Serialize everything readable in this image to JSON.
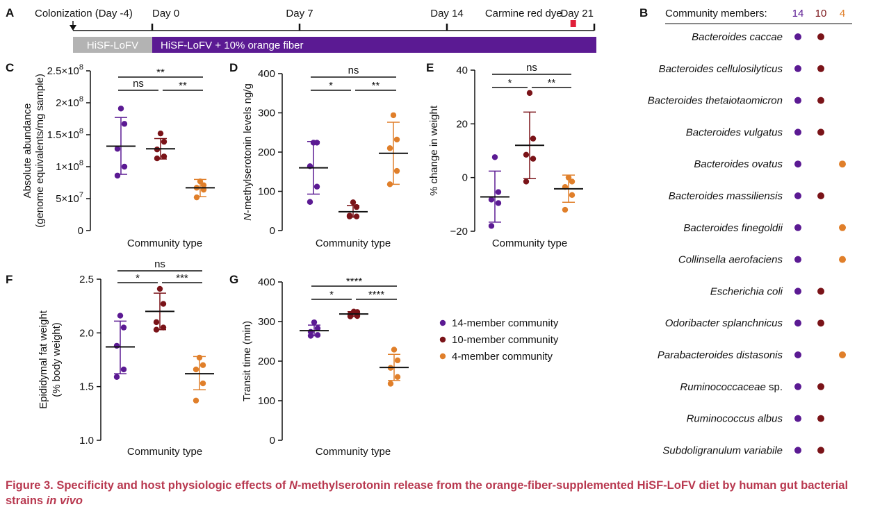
{
  "colors": {
    "c14": "#5b1a93",
    "c10": "#7a1318",
    "c4": "#e07f2a",
    "timeline_gray": "#b3b3b3",
    "timeline_purple": "#5b1a93",
    "dye_marker": "#e0203a",
    "caption": "#b8384f"
  },
  "panel_a": {
    "letter": "A",
    "colonization_label": "Colonization (Day -4)",
    "days": [
      {
        "label": "Day 0",
        "day": 0
      },
      {
        "label": "Day 7",
        "day": 7
      },
      {
        "label": "Day 14",
        "day": 14
      },
      {
        "label": "Day 21",
        "day": 21
      }
    ],
    "dye_label": "Carmine red dye",
    "dye_day": 20,
    "diet_1": "HiSF-LoFV",
    "diet_2": "HiSF-LoFV + 10% orange fiber"
  },
  "panel_b": {
    "letter": "B",
    "header": "Community members:",
    "communities": [
      "14",
      "10",
      "4"
    ],
    "members": [
      {
        "name": "Bacteroides caccae",
        "in": [
          true,
          true,
          false
        ]
      },
      {
        "name": "Bacteroides cellulosilyticus",
        "in": [
          true,
          true,
          false
        ]
      },
      {
        "name": "Bacteroides thetaiotaomicron",
        "in": [
          true,
          true,
          false
        ]
      },
      {
        "name": "Bacteroides vulgatus",
        "in": [
          true,
          true,
          false
        ]
      },
      {
        "name": "Bacteroides ovatus",
        "in": [
          true,
          false,
          true
        ]
      },
      {
        "name": "Bacteroides massiliensis",
        "in": [
          true,
          true,
          false
        ]
      },
      {
        "name": "Bacteroides finegoldii",
        "in": [
          true,
          false,
          true
        ]
      },
      {
        "name": "Collinsella aerofaciens",
        "in": [
          true,
          false,
          true
        ]
      },
      {
        "name": "Escherichia coli",
        "in": [
          true,
          true,
          false
        ]
      },
      {
        "name": "Odoribacter splanchnicus",
        "in": [
          true,
          true,
          false
        ]
      },
      {
        "name": "Parabacteroides distasonis",
        "in": [
          true,
          false,
          true
        ]
      },
      {
        "name": "Ruminococcaceae",
        "suffix": " sp.",
        "in": [
          true,
          true,
          false
        ]
      },
      {
        "name": "Ruminococcus albus",
        "in": [
          true,
          true,
          false
        ]
      },
      {
        "name": "Subdoligranulum variabile",
        "in": [
          true,
          true,
          false
        ]
      }
    ]
  },
  "legend": [
    {
      "label": "14-member community",
      "color_key": "c14"
    },
    {
      "label": "10-member community",
      "color_key": "c10"
    },
    {
      "label": "4-member community",
      "color_key": "c4"
    }
  ],
  "chart_data": [
    {
      "panel": "C",
      "type": "scatter",
      "ylabel_lines": [
        "Absolute abundance",
        "(genome equivalents/mg sample)"
      ],
      "xlabel": "Community type",
      "ylim": [
        0,
        250000000
      ],
      "yticks": [
        {
          "v": 0,
          "label": "0"
        },
        {
          "v": 50000000,
          "label": "5×10",
          "exp": "7"
        },
        {
          "v": 100000000,
          "label": "1×10",
          "exp": "8"
        },
        {
          "v": 150000000,
          "label": "1.5×10",
          "exp": "8"
        },
        {
          "v": 200000000,
          "label": "2×10",
          "exp": "8"
        },
        {
          "v": 250000000,
          "label": "2.5×10",
          "exp": "8"
        }
      ],
      "groups": [
        {
          "color_key": "c14",
          "points": [
            191000000,
            167000000,
            128000000,
            100000000,
            86000000
          ],
          "mean": 132000000,
          "sd_low": 88000000,
          "sd_high": 177000000
        },
        {
          "color_key": "c10",
          "points": [
            152000000,
            139000000,
            127000000,
            116000000,
            113000000
          ],
          "mean": 128000000,
          "sd_low": 112000000,
          "sd_high": 144000000
        },
        {
          "color_key": "c4",
          "points": [
            77000000,
            71000000,
            67000000,
            64000000,
            52000000
          ],
          "mean": 67000000,
          "sd_low": 53000000,
          "sd_high": 80000000
        }
      ],
      "sig": [
        {
          "from": 0,
          "to": 2,
          "level": 2,
          "label": "**"
        },
        {
          "from": 0,
          "to": 1,
          "level": 1,
          "label": "ns"
        },
        {
          "from": 1,
          "to": 2,
          "level": 1,
          "label": "**"
        }
      ]
    },
    {
      "panel": "D",
      "type": "scatter",
      "ylabel_lines": [
        "N-methylserotonin levels ng/g"
      ],
      "xlabel": "Community type",
      "ylim": [
        0,
        400
      ],
      "yticks": [
        {
          "v": 0,
          "label": "0"
        },
        {
          "v": 100,
          "label": "100"
        },
        {
          "v": 200,
          "label": "200"
        },
        {
          "v": 300,
          "label": "300"
        },
        {
          "v": 400,
          "label": "400"
        }
      ],
      "groups": [
        {
          "color_key": "c14",
          "points": [
            224,
            224,
            164,
            112,
            73
          ],
          "mean": 160,
          "sd_low": 93,
          "sd_high": 227
        },
        {
          "color_key": "c10",
          "points": [
            72,
            60,
            38,
            36,
            36
          ],
          "mean": 48,
          "sd_low": 34,
          "sd_high": 64
        },
        {
          "color_key": "c4",
          "points": [
            294,
            232,
            210,
            152,
            118
          ],
          "mean": 197,
          "sd_low": 118,
          "sd_high": 276
        }
      ],
      "sig": [
        {
          "from": 0,
          "to": 2,
          "level": 2,
          "label": "ns"
        },
        {
          "from": 0,
          "to": 1,
          "level": 1,
          "label": "*"
        },
        {
          "from": 1,
          "to": 2,
          "level": 1,
          "label": "**"
        }
      ]
    },
    {
      "panel": "E",
      "type": "scatter",
      "ylabel_lines": [
        "% change in weight"
      ],
      "xlabel": "Community type",
      "ylim": [
        -20,
        40
      ],
      "yticks": [
        {
          "v": -20,
          "label": "−20"
        },
        {
          "v": 0,
          "label": "0"
        },
        {
          "v": 20,
          "label": "20"
        },
        {
          "v": 40,
          "label": "40"
        }
      ],
      "groups": [
        {
          "color_key": "c14",
          "points": [
            7.6,
            -5.4,
            -8.2,
            -9.5,
            -18
          ],
          "mean": -7.2,
          "sd_low": -16.6,
          "sd_high": 2.4
        },
        {
          "color_key": "c10",
          "points": [
            31.5,
            14.5,
            8.5,
            7,
            -1.5
          ],
          "mean": 12,
          "sd_low": -0.4,
          "sd_high": 24.4
        },
        {
          "color_key": "c4",
          "points": [
            0,
            -1.5,
            -3.5,
            -6.5,
            -12
          ],
          "mean": -4.2,
          "sd_low": -9.2,
          "sd_high": 0.9
        }
      ],
      "sig": [
        {
          "from": 0,
          "to": 2,
          "level": 2,
          "label": "ns"
        },
        {
          "from": 0,
          "to": 1,
          "level": 1,
          "label": "*"
        },
        {
          "from": 1,
          "to": 2,
          "level": 1,
          "label": "**"
        }
      ]
    },
    {
      "panel": "F",
      "type": "scatter",
      "ylabel_lines": [
        "Epididymal fat weight",
        "(% body weight)"
      ],
      "xlabel": "Community type",
      "ylim": [
        1.0,
        2.5
      ],
      "yticks": [
        {
          "v": 1.0,
          "label": "1.0"
        },
        {
          "v": 1.5,
          "label": "1.5"
        },
        {
          "v": 2.0,
          "label": "2.0"
        },
        {
          "v": 2.5,
          "label": "2.5"
        }
      ],
      "groups": [
        {
          "color_key": "c14",
          "points": [
            2.16,
            2.05,
            1.88,
            1.66,
            1.59
          ],
          "mean": 1.87,
          "sd_low": 1.62,
          "sd_high": 2.11
        },
        {
          "color_key": "c10",
          "points": [
            2.41,
            2.27,
            2.1,
            2.05,
            2.03
          ],
          "mean": 2.2,
          "sd_low": 2.03,
          "sd_high": 2.37
        },
        {
          "color_key": "c4",
          "points": [
            1.77,
            1.7,
            1.66,
            1.53,
            1.37
          ],
          "mean": 1.62,
          "sd_low": 1.47,
          "sd_high": 1.78
        }
      ],
      "sig": [
        {
          "from": 0,
          "to": 2,
          "level": 2,
          "label": "ns"
        },
        {
          "from": 0,
          "to": 1,
          "level": 1,
          "label": "*"
        },
        {
          "from": 1,
          "to": 2,
          "level": 1,
          "label": "***"
        }
      ]
    },
    {
      "panel": "G",
      "type": "scatter",
      "ylabel_lines": [
        "Transit time (min)"
      ],
      "xlabel": "Community type",
      "ylim": [
        0,
        400
      ],
      "yticks": [
        {
          "v": 0,
          "label": "0"
        },
        {
          "v": 100,
          "label": "100"
        },
        {
          "v": 200,
          "label": "200"
        },
        {
          "v": 300,
          "label": "300"
        },
        {
          "v": 400,
          "label": "400"
        }
      ],
      "groups": [
        {
          "color_key": "c14",
          "points": [
            298,
            283,
            274,
            266,
            264
          ],
          "mean": 277,
          "sd_low": 264,
          "sd_high": 291
        },
        {
          "color_key": "c10",
          "points": [
            325,
            324,
            318,
            314,
            313
          ],
          "mean": 319,
          "sd_low": 313,
          "sd_high": 325
        },
        {
          "color_key": "c4",
          "points": [
            229,
            202,
            183,
            160,
            143
          ],
          "mean": 184,
          "sd_low": 151,
          "sd_high": 217
        }
      ],
      "sig": [
        {
          "from": 0,
          "to": 2,
          "level": 2,
          "label": "****"
        },
        {
          "from": 0,
          "to": 1,
          "level": 1,
          "label": "*"
        },
        {
          "from": 1,
          "to": 2,
          "level": 1,
          "label": "****"
        }
      ]
    }
  ],
  "caption": {
    "pre": "Figure 3. Specificity and host physiologic effects of ",
    "italic_1": "N",
    "mid": "-methylserotonin release from the orange-fiber-supplemented HiSF-LoFV diet by human gut bacterial strains ",
    "italic_2": "in vivo"
  }
}
